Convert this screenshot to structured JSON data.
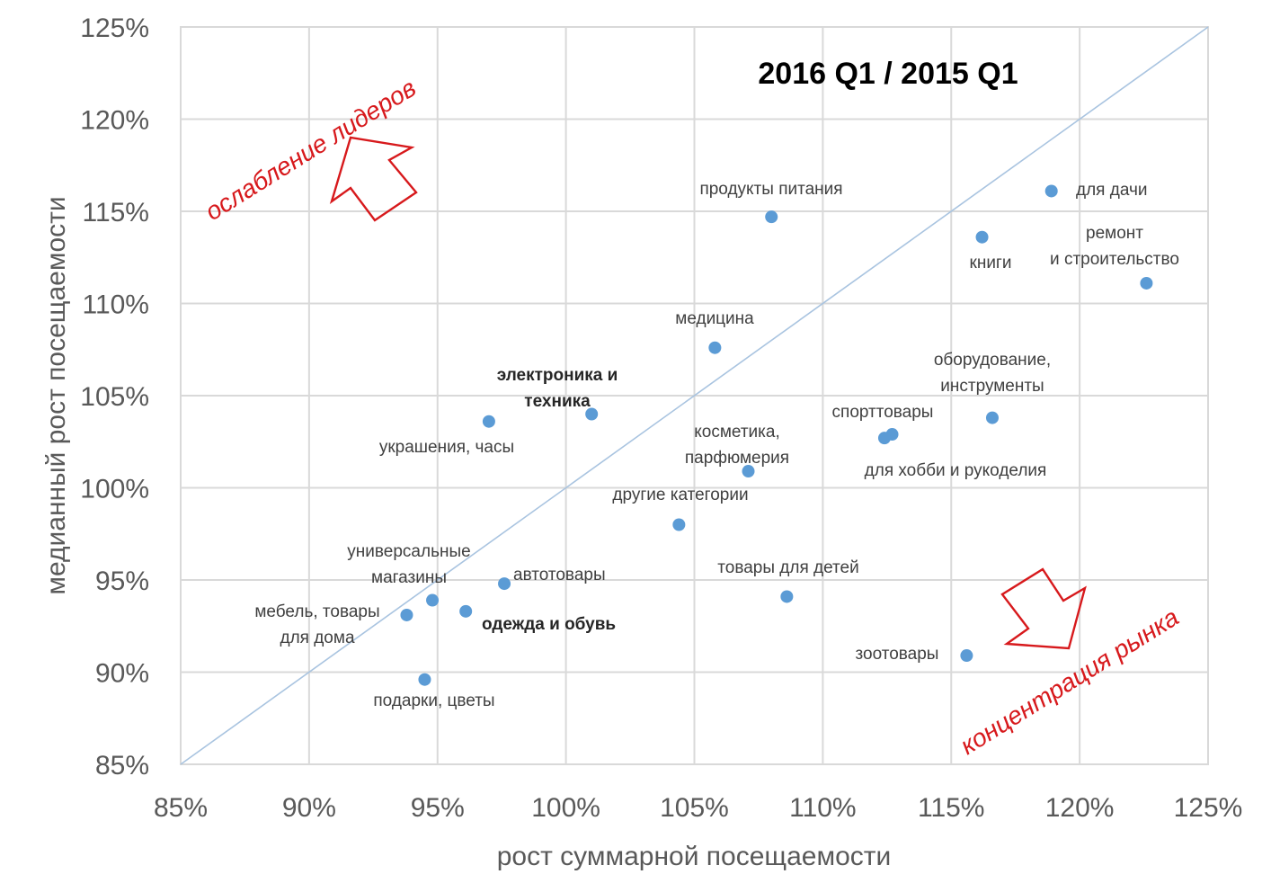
{
  "chart_data": {
    "type": "scatter",
    "title": "2016 Q1 / 2015 Q1",
    "xlabel": "рост суммарной посещаемости",
    "ylabel": "медианный рост посещаемости",
    "xlim": [
      85,
      125
    ],
    "ylim": [
      85,
      125
    ],
    "x_ticks": [
      85,
      90,
      95,
      100,
      105,
      110,
      115,
      120,
      125
    ],
    "y_ticks": [
      85,
      90,
      95,
      100,
      105,
      110,
      115,
      120,
      125
    ],
    "x_tick_labels": [
      "85%",
      "90%",
      "95%",
      "100%",
      "105%",
      "110%",
      "115%",
      "120%",
      "125%"
    ],
    "y_tick_labels": [
      "85%",
      "90%",
      "95%",
      "100%",
      "105%",
      "110%",
      "115%",
      "120%",
      "125%"
    ],
    "grid": true,
    "reference_line": {
      "from": [
        85,
        85
      ],
      "to": [
        125,
        125
      ]
    },
    "colors": {
      "points": "#5b9bd5",
      "diagonal": "#a9c4e0",
      "callout": "#d7191c",
      "grid": "#d9d9d9"
    },
    "points": [
      {
        "label": "продукты питания",
        "x": 108.0,
        "y": 114.7
      },
      {
        "label": "для дачи",
        "x": 118.9,
        "y": 116.1
      },
      {
        "label": "книги",
        "x": 116.2,
        "y": 113.6
      },
      {
        "label": "ремонт и строительство",
        "x": 122.6,
        "y": 111.1
      },
      {
        "label": "медицина",
        "x": 105.8,
        "y": 107.6
      },
      {
        "label": "электроника и техника",
        "x": 101.0,
        "y": 104.0,
        "bold": true
      },
      {
        "label": "украшения, часы",
        "x": 97.0,
        "y": 103.6
      },
      {
        "label": "оборудование, инструменты",
        "x": 116.6,
        "y": 103.8
      },
      {
        "label": "спорттовары",
        "x": 112.7,
        "y": 102.9
      },
      {
        "label": "для хобби и рукоделия",
        "x": 112.4,
        "y": 102.7
      },
      {
        "label": "косметика, парфюмерия",
        "x": 107.1,
        "y": 100.9
      },
      {
        "label": "другие категории",
        "x": 104.4,
        "y": 98.0
      },
      {
        "label": "автотовары",
        "x": 97.6,
        "y": 94.8
      },
      {
        "label": "универсальные магазины",
        "x": 94.8,
        "y": 93.9
      },
      {
        "label": "одежда и обувь",
        "x": 96.1,
        "y": 93.3,
        "bold": true
      },
      {
        "label": "мебель, товары для дома",
        "x": 93.8,
        "y": 93.1
      },
      {
        "label": "подарки, цветы",
        "x": 94.5,
        "y": 89.6
      },
      {
        "label": "товары для детей",
        "x": 108.6,
        "y": 94.1
      },
      {
        "label": "зоотовары",
        "x": 115.6,
        "y": 90.9
      }
    ],
    "annotations": [
      {
        "text": "ослабление лидеров",
        "region": "top-left",
        "arrow": "up-left"
      },
      {
        "text": "концентрация рынка",
        "region": "bottom-right",
        "arrow": "down-right"
      }
    ]
  }
}
